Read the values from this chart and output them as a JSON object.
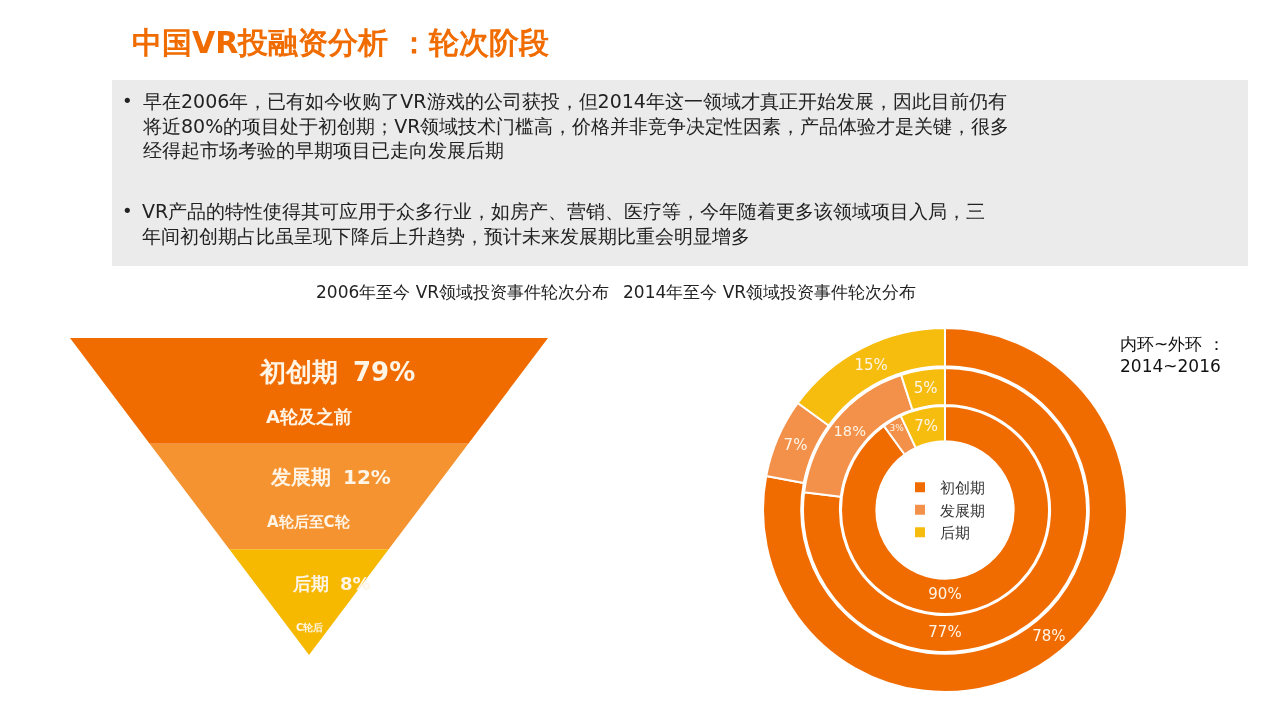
{
  "chart_data": [
    {
      "type": "other",
      "title": "中国VR投融资分析 ：轮次阶段",
      "annotations": [
        "• 早在2006年，已有如今收购了VR游戏的公司获投，但2014年这一领域才真正开始发展，因此目前仍有将近80%的项目处于初创期；VR领域技术门槛高，价格并非竞争决定性因素，产品体验才是关键，很多经得起市场考验的早期项目已走向发展后期",
        "• VR产品的特性使得其可应用于众多行业，如房产、营销、医疗等，今年随着更多该领域项目入局，三年间初创期占比虽呈现下降后上升趋势，预计未来发展期比重会明显增多"
      ]
    },
    {
      "type": "other",
      "title": "2006年至今 VR领域投资事件轮次分布",
      "categories": [
        "初创期",
        "发展期",
        "后期"
      ],
      "values": [
        79,
        12,
        8
      ],
      "value_labels": [
        "79%",
        "12%",
        "8%"
      ],
      "colors": [
        "#f06c00",
        "#f59331",
        "#f6b900"
      ],
      "annotations": [
        "A轮及之前",
        "A轮后至C轮",
        "C轮后"
      ]
    },
    {
      "type": "donut",
      "title": "2014年至今 VR领域投资事件轮次分布",
      "categories": [
        "初创期",
        "发展期",
        "后期"
      ],
      "colors": [
        "#f06c00",
        "#f3914a",
        "#f6bd0f"
      ],
      "series": [
        {
          "values": [
            90,
            3,
            7
          ],
          "value_labels": [
            "90%",
            "3%",
            "7%"
          ]
        },
        {
          "values": [
            77,
            18,
            5
          ],
          "value_labels": [
            "77%",
            "18%",
            "5%"
          ]
        },
        {
          "values": [
            78,
            7,
            15
          ],
          "value_labels": [
            "78%",
            "7%",
            "15%"
          ]
        }
      ],
      "legend": "center",
      "annotations": [
        "内环~外环 ：\n2014~2016"
      ]
    }
  ]
}
